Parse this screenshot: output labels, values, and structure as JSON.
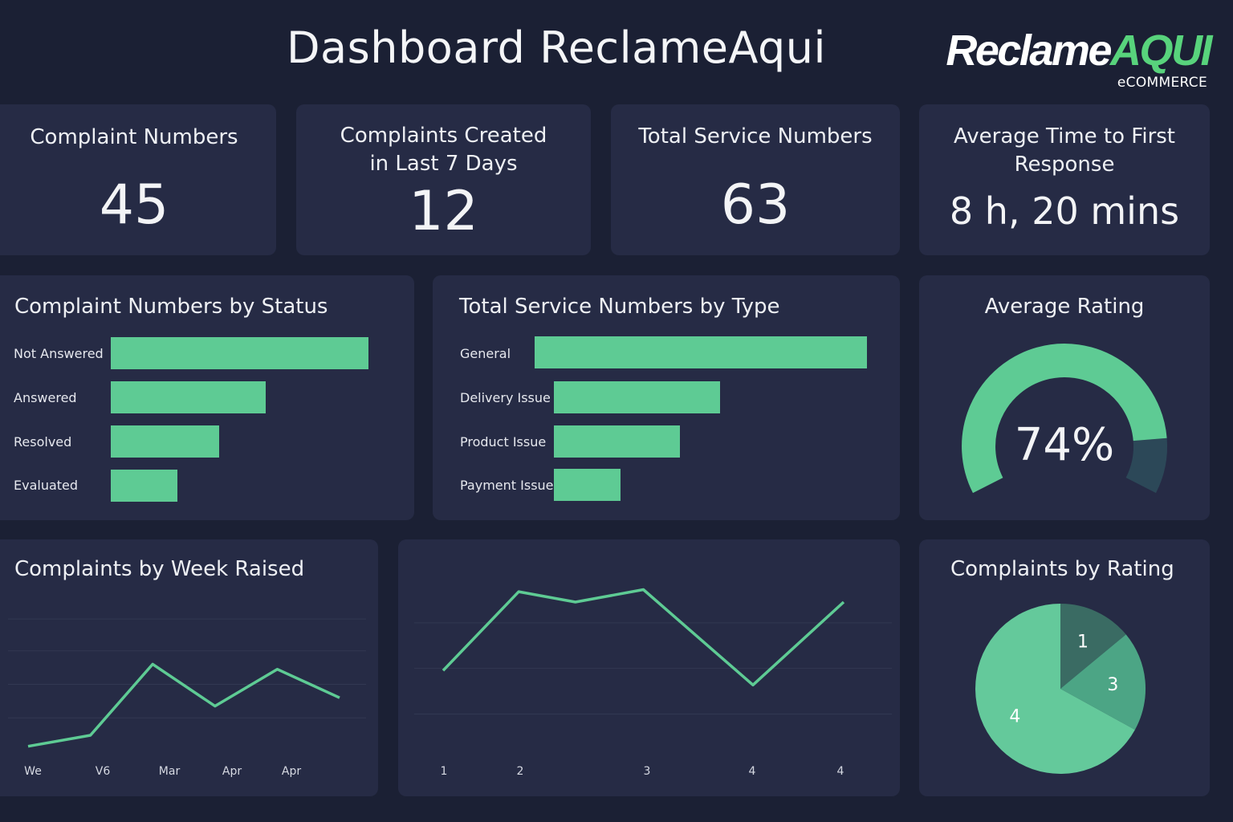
{
  "header": {
    "title": "Dashboard ReclameAqui",
    "logo": {
      "word1": "Reclame",
      "word2": "AQUI",
      "sub": "eCOMMERCE"
    }
  },
  "kpis": [
    {
      "title": "Complaint Numbers",
      "value": "45"
    },
    {
      "title": "Complaints Created in Last 7 Days",
      "value": "12"
    },
    {
      "title": "Total Service Numbers",
      "value": "63"
    },
    {
      "title": "Average Time to First Response",
      "value": "8 h, 20 mins"
    }
  ],
  "status_panel": {
    "title": "Complaint Numbers by Status",
    "items": [
      {
        "label": "Not Answered",
        "value": 1.0
      },
      {
        "label": "Answered",
        "value": 0.6
      },
      {
        "label": "Resolved",
        "value": 0.42
      },
      {
        "label": "Evaluated",
        "value": 0.26
      }
    ]
  },
  "type_panel": {
    "title": "Total Service Numbers by Type",
    "items": [
      {
        "label": "General",
        "value": 1.0
      },
      {
        "label": "Delivery Issue",
        "value": 0.5
      },
      {
        "label": "Product Issue",
        "value": 0.38
      },
      {
        "label": "Payment Issue",
        "value": 0.2
      }
    ]
  },
  "rating_gauge": {
    "title": "Average Rating",
    "value_label": "74%",
    "value": 0.74,
    "colors": {
      "fill": "#5ecb94",
      "rest": "#2c4858"
    }
  },
  "week_chart": {
    "title": "Complaints by Week Raised"
  },
  "pie": {
    "title": "Complaints by Rating"
  },
  "chart_data": [
    {
      "type": "bar",
      "title": "Complaint Numbers by Status",
      "categories": [
        "Not Answered",
        "Answered",
        "Resolved",
        "Evaluated"
      ],
      "values": [
        1.0,
        0.6,
        0.42,
        0.26
      ]
    },
    {
      "type": "bar",
      "title": "Total Service Numbers by Type",
      "categories": [
        "General",
        "Delivery Issue",
        "Product Issue",
        "Payment Issue"
      ],
      "values": [
        1.0,
        0.5,
        0.38,
        0.2
      ]
    },
    {
      "type": "line",
      "title": "Complaints by Week Raised",
      "xticks": [
        "We",
        "V6",
        "Mar",
        "Apr",
        "Apr"
      ],
      "x": [
        0,
        1,
        2,
        3,
        4,
        5
      ],
      "values": [
        0.15,
        0.48,
        2.6,
        1.35,
        2.45,
        1.6
      ],
      "ylim": [
        0,
        4
      ],
      "grid": true
    },
    {
      "type": "line",
      "title": "",
      "xticks": [
        "1",
        "2",
        "3",
        "4",
        "4"
      ],
      "x": [
        0.0,
        1.0,
        1.75,
        2.65,
        4.1,
        5.3
      ],
      "values": [
        1.95,
        3.85,
        3.6,
        3.9,
        1.6,
        3.6
      ],
      "ylim": [
        0,
        4.8
      ],
      "grid": true
    },
    {
      "type": "pie",
      "title": "Complaints by Rating",
      "labels": [
        "1",
        "3",
        "4"
      ],
      "values": [
        0.14,
        0.19,
        0.67
      ],
      "colors": [
        "#3a6b63",
        "#4ca585",
        "#64c99b"
      ]
    }
  ]
}
